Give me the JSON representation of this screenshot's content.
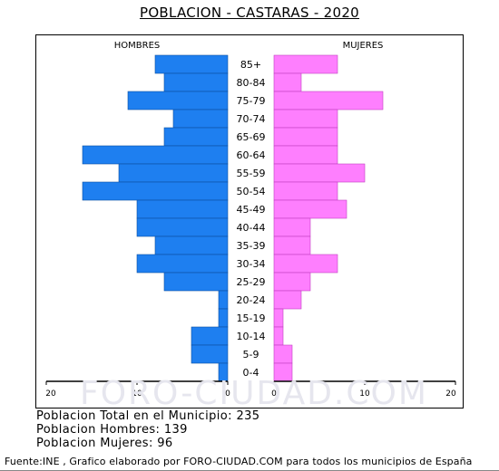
{
  "title": "POBLACION - CASTARAS - 2020",
  "summary": {
    "total": "Poblacion Total en el Municipio: 235",
    "men": "Poblacion Hombres: 139",
    "women": "Poblacion Mujeres: 96"
  },
  "footer": "Fuente:INE , Grafico elaborado por FORO-CIUDAD.COM para todos los municipios de España",
  "watermark": "FORO-CIUDAD.COM",
  "colors": {
    "men": "#1e7ff0",
    "women": "#fe7ffe",
    "bar_outline_men": "#0a4ea0",
    "bar_outline_women": "#c040c0"
  },
  "chart_data": {
    "type": "bar",
    "orientation": "horizontal-pyramid",
    "categories": [
      "85+",
      "80-84",
      "75-79",
      "70-74",
      "65-69",
      "60-64",
      "55-59",
      "50-54",
      "45-49",
      "40-44",
      "35-39",
      "30-34",
      "25-29",
      "20-24",
      "15-19",
      "10-14",
      "5-9",
      "0-4"
    ],
    "series": [
      {
        "name": "HOMBRES",
        "values": [
          8,
          7,
          11,
          6,
          7,
          16,
          12,
          16,
          10,
          10,
          8,
          10,
          7,
          1,
          1,
          4,
          4,
          1
        ]
      },
      {
        "name": "MUJERES",
        "values": [
          7,
          3,
          12,
          7,
          7,
          7,
          10,
          7,
          8,
          4,
          4,
          7,
          4,
          3,
          1,
          1,
          2,
          2
        ]
      }
    ],
    "xlim": [
      0,
      20
    ],
    "ticks_left": [
      "20",
      "10",
      "0"
    ],
    "ticks_right": [
      "0",
      "10",
      "20"
    ],
    "legend": "top"
  }
}
